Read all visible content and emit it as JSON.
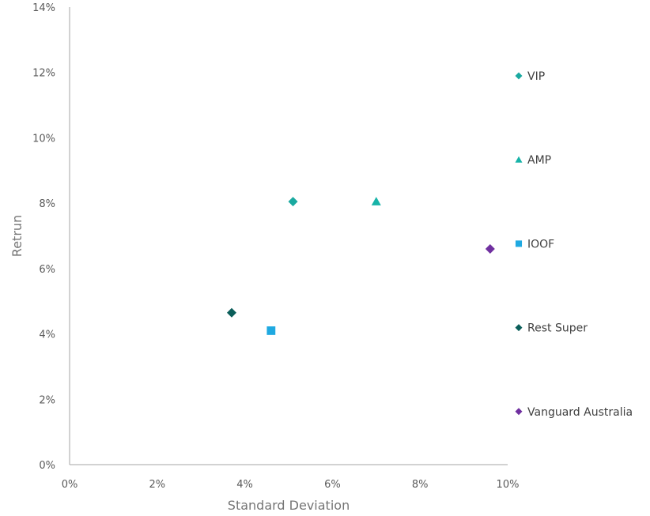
{
  "chart_data": {
    "type": "scatter",
    "xlabel": "Standard Deviation",
    "ylabel": "Retrun",
    "xlim": [
      0,
      10
    ],
    "ylim": [
      0,
      14
    ],
    "x_ticks": [
      "0%",
      "2%",
      "4%",
      "6%",
      "8%",
      "10%"
    ],
    "y_ticks": [
      "0%",
      "2%",
      "4%",
      "6%",
      "8%",
      "10%",
      "12%",
      "14%"
    ],
    "grid": false,
    "legend_position": "right",
    "series": [
      {
        "name": "VIP",
        "marker": "diamond",
        "color": "#1aa9a0",
        "points": [
          {
            "x": 5.1,
            "y": 8.05
          }
        ]
      },
      {
        "name": "AMP",
        "marker": "triangle",
        "color": "#17b3a8",
        "points": [
          {
            "x": 7.0,
            "y": 8.05
          }
        ]
      },
      {
        "name": "IOOF",
        "marker": "square",
        "color": "#1fa9e1",
        "points": [
          {
            "x": 4.6,
            "y": 4.1
          }
        ]
      },
      {
        "name": "Rest Super",
        "marker": "diamond",
        "color": "#0b5e5a",
        "points": [
          {
            "x": 3.7,
            "y": 4.65
          }
        ]
      },
      {
        "name": "Vanguard Australia",
        "marker": "diamond",
        "color": "#7030a0",
        "points": [
          {
            "x": 9.6,
            "y": 6.6
          }
        ]
      }
    ]
  }
}
